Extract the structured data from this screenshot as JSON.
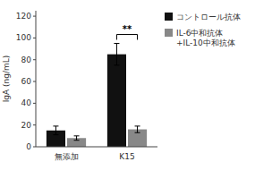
{
  "chart_data": {
    "type": "bar",
    "categories": [
      "無添加",
      "K15"
    ],
    "series": [
      {
        "name": "コントロール抗体",
        "color": "#111111",
        "values": [
          15,
          85
        ],
        "errors": [
          4,
          10
        ]
      },
      {
        "name": "IL-6中和抗体\n+IL-10中和抗体",
        "color": "#888888",
        "values": [
          8,
          16
        ],
        "errors": [
          2,
          3
        ]
      }
    ],
    "y_label": "IgA (ng/mL)",
    "ylim": [
      0,
      125
    ],
    "yticks": [
      0,
      20,
      40,
      60,
      80,
      100,
      120
    ],
    "annotations": [
      {
        "text": "**",
        "x": "K15"
      }
    ],
    "grid": false,
    "legend": "right"
  }
}
